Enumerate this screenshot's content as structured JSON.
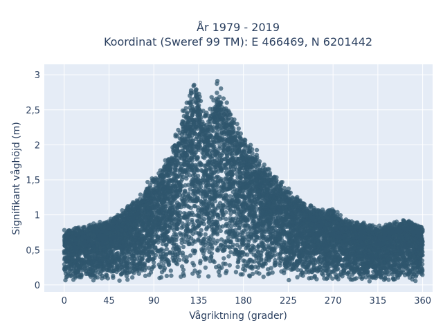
{
  "chart_data": {
    "type": "scatter",
    "title": [
      "År 1979 - 2019",
      "Koordinat (Sweref 99 TM): E 466469, N 6201442"
    ],
    "xlabel": "Vågriktning (grader)",
    "ylabel": "Signifikant våghöjd (m)",
    "xlim": [
      -20,
      370
    ],
    "ylim": [
      -0.1,
      3.15
    ],
    "xticks": [
      0,
      45,
      90,
      135,
      180,
      225,
      270,
      315,
      360
    ],
    "yticks": [
      0,
      0.5,
      1,
      1.5,
      2,
      2.5,
      3
    ],
    "ytick_labels": [
      "0",
      "0,5",
      "1",
      "1,5",
      "2",
      "2,5",
      "3"
    ],
    "grid": true,
    "legend": "none",
    "point_color": "#2f566e",
    "plot_bg": "#e5ecf6",
    "envelope": {
      "description": "upper bound of point cloud (approx.) per direction",
      "x": [
        0,
        20,
        45,
        60,
        75,
        90,
        100,
        110,
        120,
        125,
        130,
        135,
        140,
        145,
        150,
        155,
        160,
        165,
        170,
        180,
        190,
        200,
        210,
        225,
        240,
        255,
        270,
        285,
        300,
        315,
        330,
        345,
        360
      ],
      "y": [
        0.8,
        0.85,
        0.95,
        1.1,
        1.3,
        1.6,
        1.75,
        2.1,
        2.6,
        2.8,
        2.9,
        2.9,
        2.5,
        2.6,
        2.85,
        3.0,
        2.75,
        2.6,
        2.5,
        2.2,
        2.0,
        1.8,
        1.6,
        1.4,
        1.2,
        1.1,
        1.1,
        0.95,
        0.9,
        0.85,
        0.9,
        0.95,
        0.85
      ]
    },
    "lower_bound": 0.05
  }
}
